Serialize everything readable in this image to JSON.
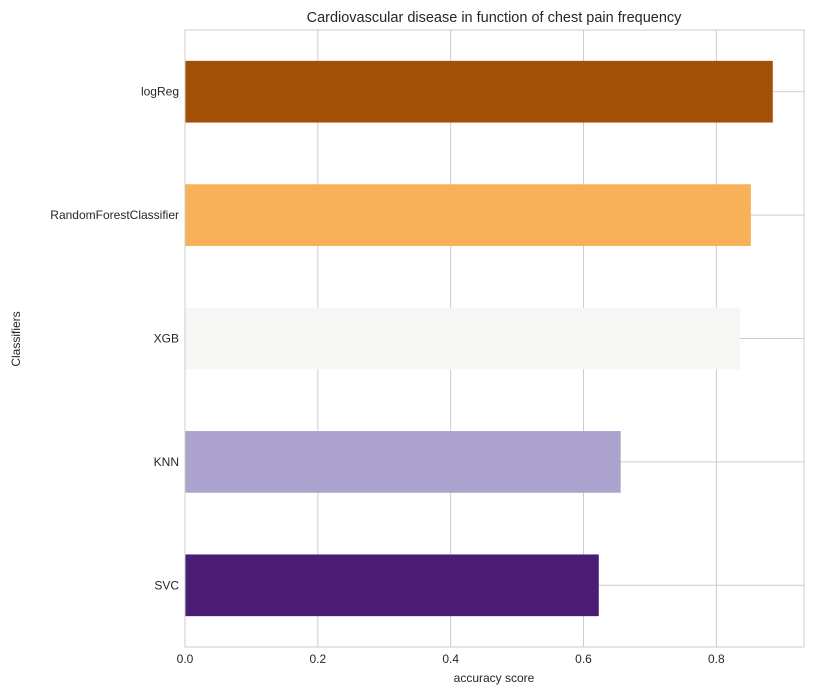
{
  "chart_data": {
    "type": "bar",
    "orientation": "horizontal",
    "title": "Cardiovascular disease in function of chest pain frequency",
    "xlabel": "accuracy score",
    "ylabel": "Classifiers",
    "xlim": [
      0,
      0.932
    ],
    "xticks": [
      0.0,
      0.2,
      0.4,
      0.6,
      0.8
    ],
    "xtick_labels": [
      "0.0",
      "0.2",
      "0.4",
      "0.6",
      "0.8"
    ],
    "grid": true,
    "categories": [
      "SVC",
      "KNN",
      "XGB",
      "RandomForestClassifier",
      "logReg"
    ],
    "values": [
      0.623,
      0.656,
      0.836,
      0.852,
      0.885
    ],
    "colors": [
      "#4a1c72",
      "#aba3cd",
      "#f6f6f4",
      "#f8b158",
      "#a24f08"
    ]
  }
}
